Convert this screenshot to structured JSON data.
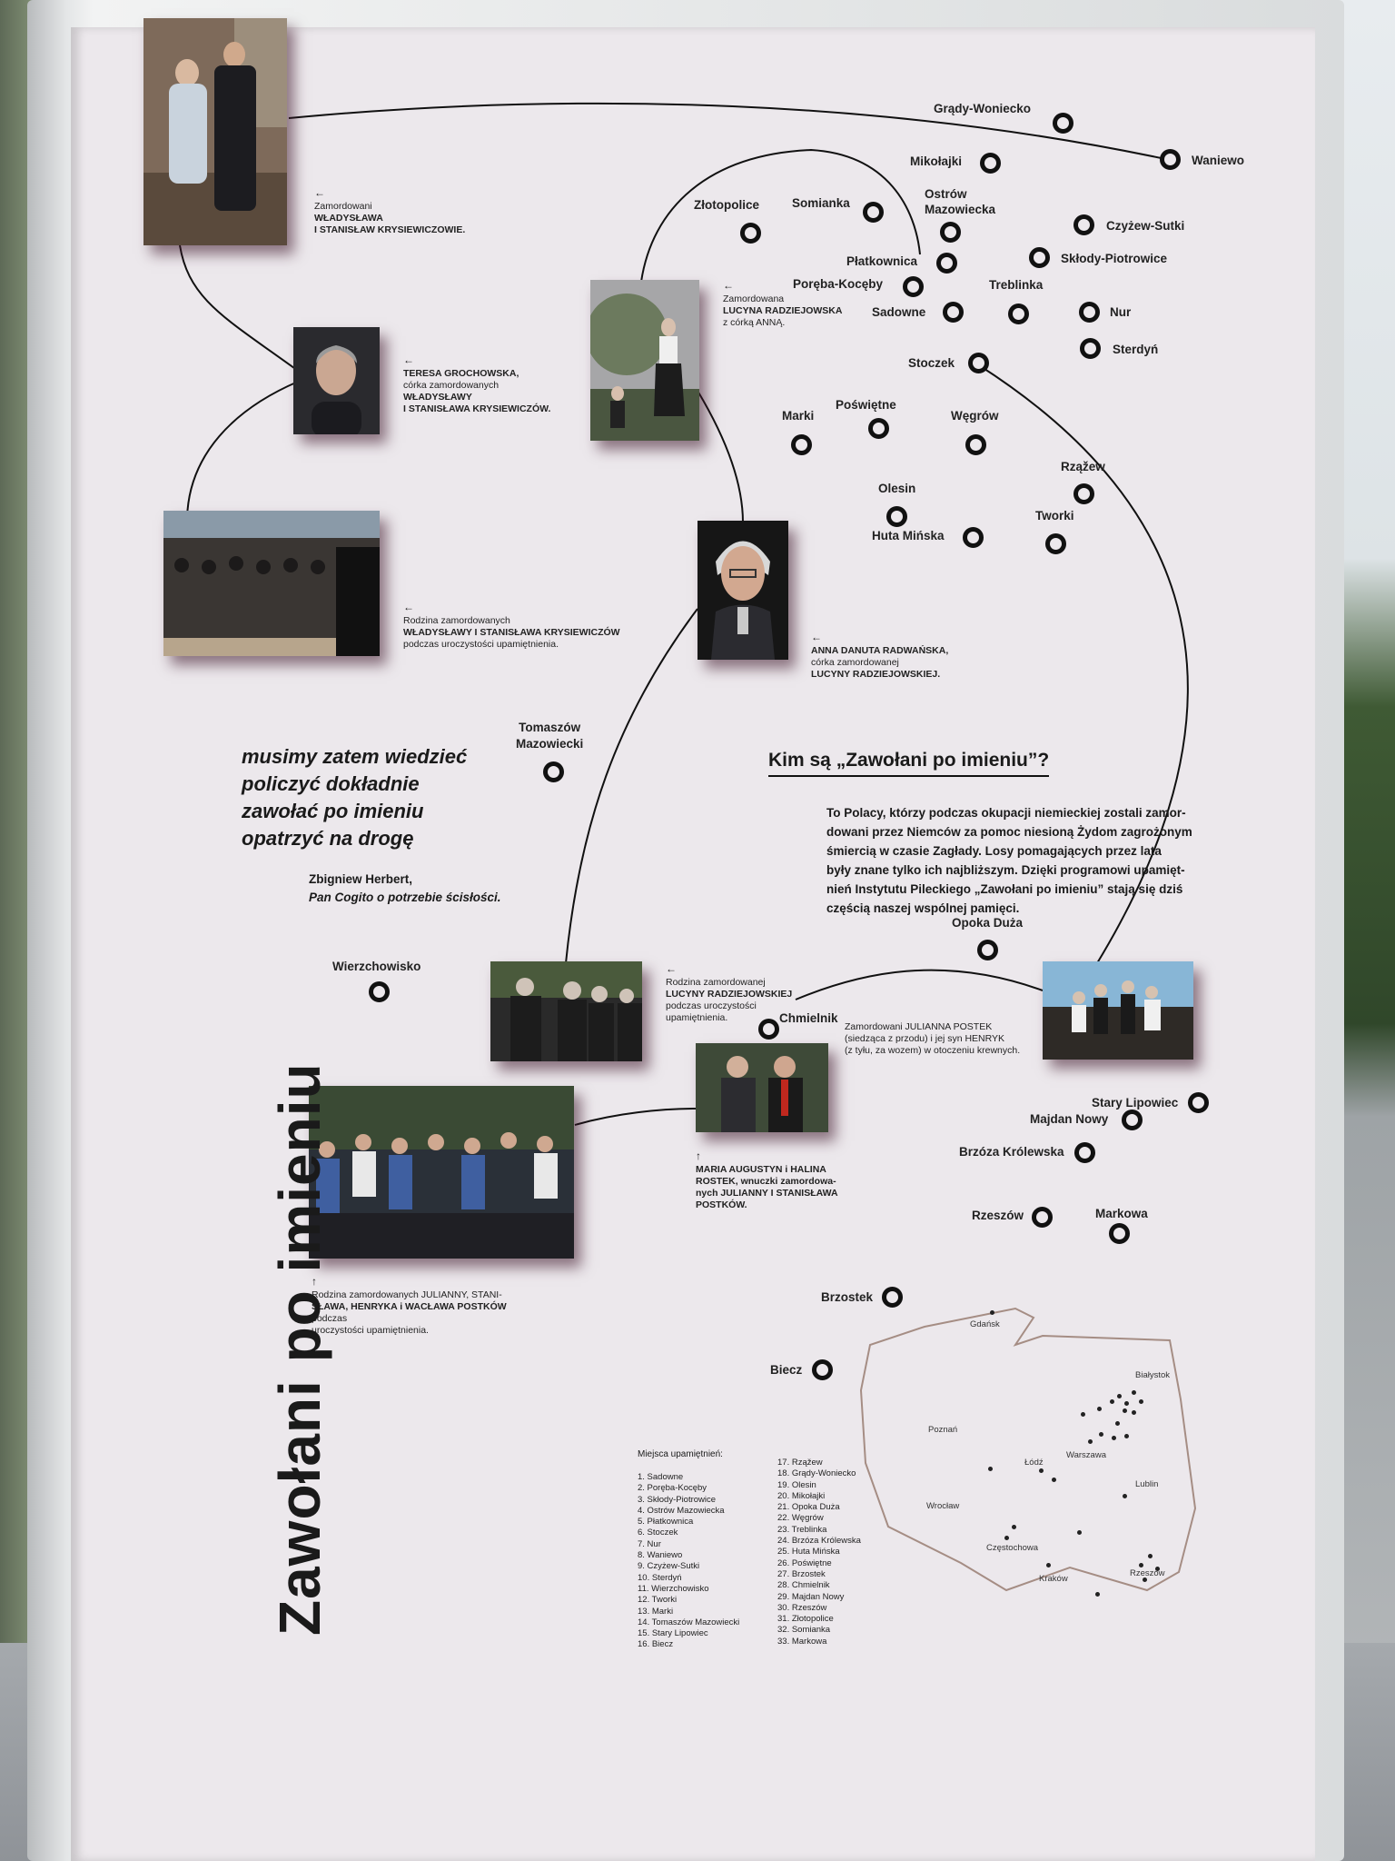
{
  "title": "Zawołani po imieniu",
  "quote": {
    "lines": [
      "musimy zatem wiedzieć",
      "policzyć dokładnie",
      "zawołać po imieniu",
      "opatrzyć na drogę"
    ],
    "author": "Zbigniew Herbert,",
    "work": "Pan Cogito o potrzebie ścisłości."
  },
  "section": {
    "heading": "Kim są „Zawołani po imieniu”?",
    "body": [
      "To Polacy, którzy podczas okupacji niemieckiej zostali zamor-",
      "dowani przez Niemców za pomoc niesioną Żydom zagrożonym",
      "śmiercią w czasie Zagłady. Losy pomagających przez lata",
      "były znane tylko ich najbliższym. Dzięki programowi upamięt-",
      "nień Instytutu Pileckiego „Zawołani po imieniu” stają się dziś",
      "częścią naszej wspólnej pamięci."
    ]
  },
  "captions": {
    "c1": {
      "l1": "Zamordowani",
      "l2": "WŁADYSŁAWA",
      "l3": "I STANISŁAW KRYSIEWICZOWIE."
    },
    "c2": {
      "l1": "TERESA GROCHOWSKA,",
      "l2": "córka zamordowanych",
      "l3": "WŁADYSŁAWY",
      "l4": "I STANISŁAWA KRYSIEWICZÓW."
    },
    "c3": {
      "l1": "Rodzina zamordowanych",
      "l2": "WŁADYSŁAWY I STANISŁAWA KRYSIEWICZÓW",
      "l3": "podczas uroczystości upamiętnienia."
    },
    "c4": {
      "l1": "Zamordowana",
      "l2": "LUCYNA RADZIEJOWSKA",
      "l3": "z córką ANNĄ."
    },
    "c5": {
      "l1": "ANNA DANUTA RADWAŃSKA,",
      "l2": "córka zamordowanej",
      "l3": "LUCYNY RADZIEJOWSKIEJ."
    },
    "c6": {
      "l1": "Rodzina zamordowanej",
      "l2": "LUCYNY RADZIEJOWSKIEJ",
      "l3": "podczas uroczystości",
      "l4": "upamiętnienia."
    },
    "c7": {
      "l1": "Zamordowani JULIANNA POSTEK",
      "l2": "(siedząca z przodu) i jej syn HENRYK",
      "l3": "(z tyłu, za wozem) w otoczeniu krewnych."
    },
    "c8": {
      "l1": "MARIA AUGUSTYN i HALINA",
      "l2": "ROSTEK, wnuczki zamordowa-",
      "l3": "nych JULIANNY I STANISŁAWA",
      "l4": "POSTKÓW."
    },
    "c9": {
      "l1": "Rodzina zamordowanych JULIANNY, STANI-",
      "l2": "SŁAWA, HENRYKA i WACŁAWA POSTKÓW",
      "l3": "podczas",
      "l4": "uroczystości upamiętnienia."
    }
  },
  "places": {
    "grady": "Grądy-Woniecko",
    "waniewo": "Waniewo",
    "mikolajki": "Mikołajki",
    "zlotopolice": "Złotopolice",
    "somianka": "Somianka",
    "ostrow": "Ostrów\nMazowiecka",
    "czyzew": "Czyżew-Sutki",
    "sklody": "Skłody-Piotrowice",
    "platkownica": "Płatkownica",
    "poreba": "Poręba-Kocęby",
    "treblinka": "Treblinka",
    "sadowne": "Sadowne",
    "nur": "Nur",
    "sterdyn": "Sterdyń",
    "stoczek": "Stoczek",
    "marki": "Marki",
    "poswietne": "Poświętne",
    "wegrow": "Węgrów",
    "rzadzew": "Rząžew",
    "olesin": "Olesin",
    "tworki": "Tworki",
    "huta": "Huta Mińska",
    "tomaszow": "Tomaszów\nMazowiecki",
    "opoka": "Opoka Duża",
    "wierzchowisko": "Wierzchowisko",
    "chmielnik": "Chmielnik",
    "stary_lipowiec": "Stary Lipowiec",
    "majdan": "Majdan Nowy",
    "brzoza": "Brzóza Królewska",
    "rzeszow": "Rzeszów",
    "markowa": "Markowa",
    "brzostek": "Brzostek",
    "biecz": "Biecz"
  },
  "list": {
    "heading": "Miejsca upamiętnień:",
    "col1": [
      "1.  Sadowne",
      "2.  Poręba-Kocęby",
      "3.  Skłody-Piotrowice",
      "4.  Ostrów Mazowiecka",
      "5.  Płatkownica",
      "6.  Stoczek",
      "7.  Nur",
      "8.  Waniewo",
      "9.  Czyżew-Sutki",
      "10. Sterdyń",
      "11. Wierzchowisko",
      "12. Tworki",
      "13. Marki",
      "14. Tomaszów Mazowiecki",
      "15. Stary Lipowiec",
      "16. Biecz"
    ],
    "col2": [
      "17. Rząžew",
      "18. Grądy-Woniecko",
      "19. Olesin",
      "20. Mikołajki",
      "21. Opoka Duża",
      "22. Węgrów",
      "23. Treblinka",
      "24. Brzóza Królewska",
      "25. Huta Mińska",
      "26. Poświętne",
      "27. Brzostek",
      "28. Chmielnik",
      "29. Majdan Nowy",
      "30. Rzeszów",
      "31. Złotopolice",
      "32. Somianka",
      "33. Markowa"
    ]
  },
  "map": {
    "gdansk": "Gdańsk",
    "bialystok": "Białystok",
    "poznan": "Poznań",
    "lodz": "Łódź",
    "warszawa": "Warszawa",
    "lublin": "Lublin",
    "wroclaw": "Wrocław",
    "czestochowa": "Częstochowa",
    "krakow": "Kraków",
    "rzeszow": "Rzeszów"
  },
  "colors": {
    "panel": "#ece8ec",
    "ink": "#111111",
    "map_outline": "#a58d84"
  }
}
